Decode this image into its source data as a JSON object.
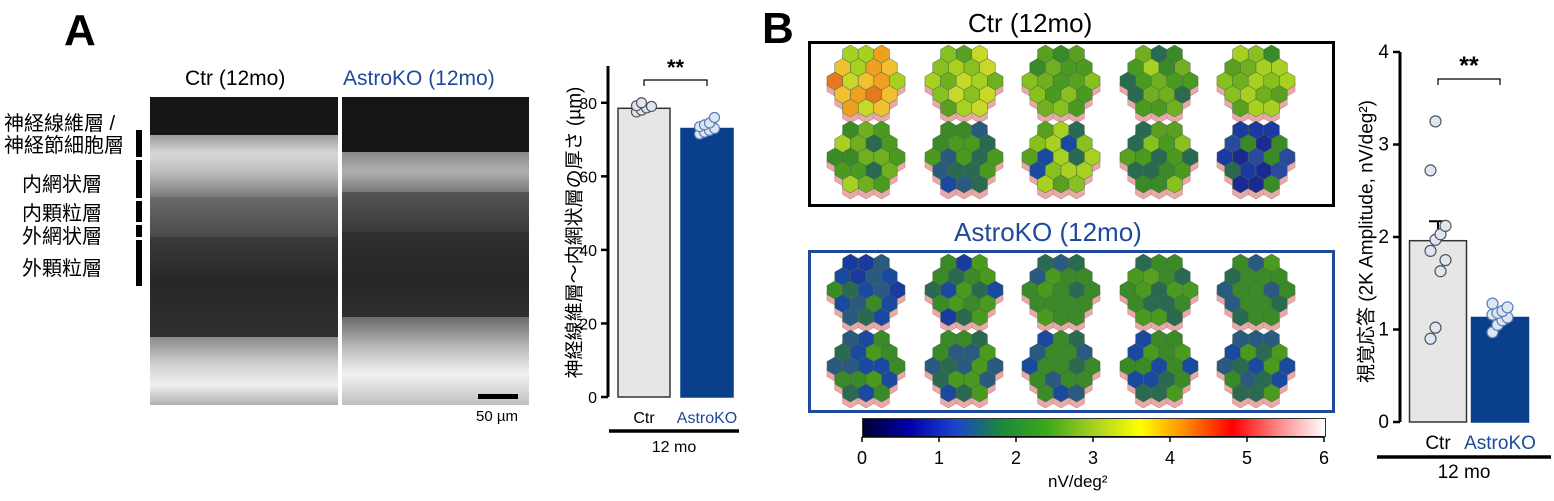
{
  "panelA": {
    "letter": "A",
    "oct": {
      "ctr_title": "Ctr (12mo)",
      "ko_title": "AstroKO (12mo)",
      "scale_bar": "50 µm",
      "layers": [
        "神経線維層 /\n神経節細胞層",
        "内網状層",
        "内顆粒層",
        "外網状層",
        "外顆粒層"
      ]
    }
  },
  "panelB": {
    "letter": "B",
    "ctr_title": "Ctr (12mo)",
    "ko_title": "AstroKO (12mo)",
    "colorbar": {
      "label": "nV/deg²",
      "ticks": [
        "0",
        "1",
        "2",
        "3",
        "4",
        "5",
        "6"
      ],
      "stops": [
        "#000033",
        "#0000aa",
        "#1a44cc",
        "#1a8a3a",
        "#3aaa1a",
        "#a8d020",
        "#ffff00",
        "#ff8800",
        "#ff0000",
        "#ff8888",
        "#ffffff"
      ]
    }
  },
  "colors": {
    "ctr_bar": "#e6e6e6",
    "ko_bar": "#0a3f8c",
    "ko_text": "#1f4a9a",
    "point_fill": "#dde6f2"
  },
  "chart_data": [
    {
      "type": "bar",
      "ylabel": "神経線維層〜内網状層の厚さ (µm)",
      "categories": [
        "Ctr",
        "AstroKO"
      ],
      "values": [
        78.5,
        73.0
      ],
      "errors": [
        1.2,
        1.6
      ],
      "group_label": "12 mo",
      "significance": "**",
      "ylim": [
        0,
        90
      ],
      "yticks": [
        0,
        20,
        40,
        60,
        80
      ],
      "points": [
        [
          77.5,
          78.0,
          78.6,
          79.0,
          79.2,
          80.0
        ],
        [
          71.5,
          72.0,
          72.5,
          73.0,
          73.5,
          74.0,
          74.5,
          76.0
        ]
      ]
    },
    {
      "type": "bar",
      "ylabel": "視覚応答 (2K Amplitude, nV/deg²)",
      "categories": [
        "Ctr",
        "AstroKO"
      ],
      "values": [
        1.96,
        1.13
      ],
      "errors": [
        0.21,
        0.05
      ],
      "group_label": "12 mo",
      "significance": "**",
      "ylim": [
        0,
        4
      ],
      "yticks": [
        0,
        1,
        2,
        3,
        4
      ],
      "points": [
        [
          0.9,
          1.02,
          1.63,
          1.75,
          1.85,
          1.97,
          2.03,
          2.12,
          2.72,
          3.25
        ],
        [
          0.97,
          1.05,
          1.1,
          1.13,
          1.16,
          1.18,
          1.2,
          1.24,
          1.28
        ]
      ]
    }
  ]
}
